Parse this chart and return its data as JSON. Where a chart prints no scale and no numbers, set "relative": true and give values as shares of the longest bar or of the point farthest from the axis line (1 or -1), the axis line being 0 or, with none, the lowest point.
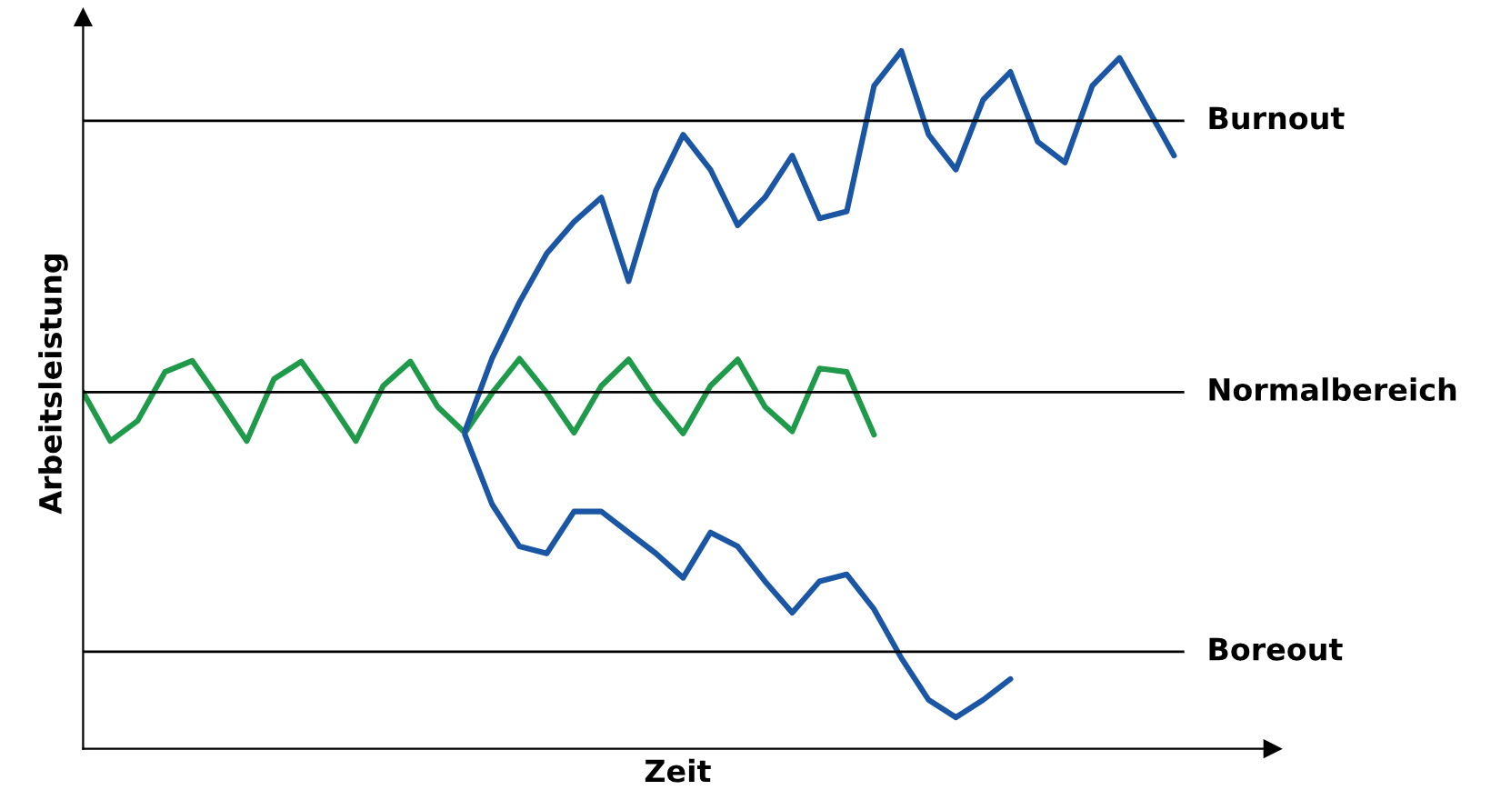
{
  "chart_data": {
    "type": "line",
    "relative": true,
    "xlabel": "Zeit",
    "ylabel": "Arbeitsleistung",
    "line_style": "solid",
    "marker": "none",
    "categories": [
      null,
      null,
      null,
      null,
      null,
      null,
      null,
      null,
      null,
      null,
      null,
      null,
      null,
      null,
      null,
      null,
      null,
      null,
      null,
      null,
      null,
      null,
      null,
      null,
      null,
      null,
      null,
      null,
      null,
      null,
      null,
      null,
      null,
      null,
      null,
      null,
      null,
      null,
      null,
      null,
      null
    ],
    "series": [
      {
        "color": "#1f9a4a",
        "values": [
          0.511,
          0.441,
          0.47,
          0.54,
          0.556,
          0.5,
          0.441,
          0.53,
          0.555,
          0.5,
          0.441,
          0.52,
          0.555,
          0.49,
          0.453,
          0.51,
          0.559,
          0.51,
          0.453,
          0.52,
          0.558,
          0.5,
          0.452,
          0.52,
          0.558,
          0.49,
          0.455,
          0.545,
          0.54,
          0.45,
          null,
          null,
          null,
          null,
          null,
          null,
          null,
          null,
          null,
          null,
          null
        ]
      },
      {
        "color": "#1a56a3",
        "values": [
          null,
          null,
          null,
          null,
          null,
          null,
          null,
          null,
          null,
          null,
          null,
          null,
          null,
          null,
          0.455,
          0.56,
          0.64,
          0.71,
          0.755,
          0.79,
          0.67,
          0.8,
          0.88,
          0.83,
          0.75,
          0.79,
          0.85,
          0.76,
          0.77,
          0.95,
          1.0,
          0.88,
          0.83,
          0.93,
          0.97,
          0.87,
          0.84,
          0.95,
          0.99,
          0.92,
          0.85
        ]
      },
      {
        "color": "#1a56a3",
        "values": [
          null,
          null,
          null,
          null,
          null,
          null,
          null,
          null,
          null,
          null,
          null,
          null,
          null,
          null,
          0.45,
          0.35,
          0.29,
          0.28,
          0.34,
          0.34,
          0.31,
          0.28,
          0.245,
          0.31,
          0.29,
          0.24,
          0.195,
          0.24,
          0.25,
          0.2,
          0.13,
          0.07,
          0.045,
          0.07,
          0.1,
          null,
          null,
          null,
          null,
          null,
          null
        ]
      }
    ],
    "ref_lines": [
      {
        "axis": "y",
        "value": 0.9,
        "label": "Burnout",
        "color": "#000000"
      },
      {
        "axis": "y",
        "value": 0.511,
        "label": "Normalbereich",
        "color": "#000000"
      },
      {
        "axis": "y",
        "value": 0.139,
        "label": "Boreout",
        "color": "#000000"
      }
    ]
  }
}
